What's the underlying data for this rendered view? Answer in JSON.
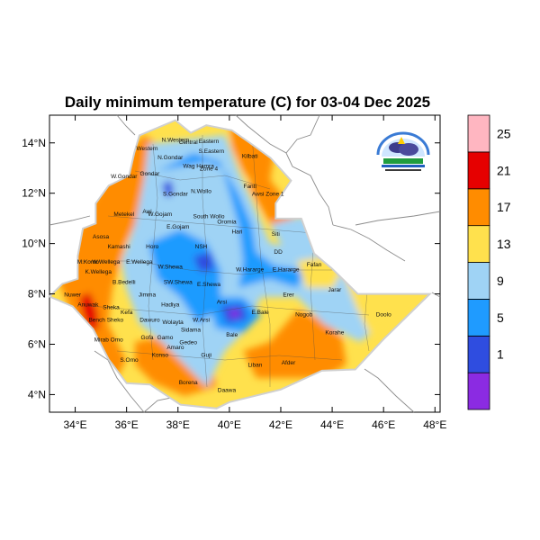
{
  "title": "Daily minimum temperature (C) for 03-04 Dec 2025",
  "lat_ticks": [
    "14°N",
    "12°N",
    "10°N",
    "8°N",
    "6°N",
    "4°N"
  ],
  "lon_ticks": [
    "34°E",
    "36°E",
    "38°E",
    "40°E",
    "42°E",
    "44°E",
    "46°E",
    "48°E"
  ],
  "colorbar": {
    "colors": [
      "#8b2be2",
      "#2f4de0",
      "#1f9bff",
      "#9fd3f5",
      "#ffe14d",
      "#ff8c00",
      "#e60000",
      "#ffb6c1"
    ],
    "labels": [
      "1",
      "5",
      "9",
      "13",
      "17",
      "21",
      "25"
    ]
  },
  "zones": [
    {
      "name": "N.Western",
      "lon": 37.9,
      "lat": 14.05
    },
    {
      "name": "Central",
      "lon": 38.4,
      "lat": 13.95
    },
    {
      "name": "Eastern",
      "lon": 39.2,
      "lat": 14.0
    },
    {
      "name": "Western",
      "lon": 36.8,
      "lat": 13.7
    },
    {
      "name": "S.Eastern",
      "lon": 39.3,
      "lat": 13.6
    },
    {
      "name": "Kilbati",
      "lon": 40.8,
      "lat": 13.4
    },
    {
      "name": "N.Gondar",
      "lon": 37.7,
      "lat": 13.35
    },
    {
      "name": "Wag Hamra",
      "lon": 38.8,
      "lat": 13.0
    },
    {
      "name": "Zone 4",
      "lon": 39.2,
      "lat": 12.9
    },
    {
      "name": "W.Gondar",
      "lon": 35.9,
      "lat": 12.6
    },
    {
      "name": "Gondar",
      "lon": 36.9,
      "lat": 12.7
    },
    {
      "name": "S.Gondar",
      "lon": 37.9,
      "lat": 11.9
    },
    {
      "name": "N.Wollo",
      "lon": 38.9,
      "lat": 12.0
    },
    {
      "name": "Fanti",
      "lon": 40.8,
      "lat": 12.2
    },
    {
      "name": "Awsi Zone 1",
      "lon": 41.5,
      "lat": 11.9
    },
    {
      "name": "Metekel",
      "lon": 35.9,
      "lat": 11.1
    },
    {
      "name": "Awi",
      "lon": 36.8,
      "lat": 11.2
    },
    {
      "name": "W.Gojam",
      "lon": 37.3,
      "lat": 11.1
    },
    {
      "name": "South Wollo",
      "lon": 39.2,
      "lat": 11.0
    },
    {
      "name": "Oromia",
      "lon": 39.9,
      "lat": 10.8
    },
    {
      "name": "E.Gojam",
      "lon": 38.0,
      "lat": 10.6
    },
    {
      "name": "Hari",
      "lon": 40.3,
      "lat": 10.4
    },
    {
      "name": "Siti",
      "lon": 41.8,
      "lat": 10.3
    },
    {
      "name": "Asosa",
      "lon": 35.0,
      "lat": 10.2
    },
    {
      "name": "Kamashi",
      "lon": 35.7,
      "lat": 9.8
    },
    {
      "name": "Horo",
      "lon": 37.0,
      "lat": 9.8
    },
    {
      "name": "NSH",
      "lon": 38.9,
      "lat": 9.8
    },
    {
      "name": "DD",
      "lon": 41.9,
      "lat": 9.6
    },
    {
      "name": "M.Komo",
      "lon": 34.5,
      "lat": 9.2
    },
    {
      "name": "W.Wellega",
      "lon": 35.2,
      "lat": 9.2
    },
    {
      "name": "E.Wellega",
      "lon": 36.5,
      "lat": 9.2
    },
    {
      "name": "W.Shewa",
      "lon": 37.7,
      "lat": 9.0
    },
    {
      "name": "Fafan",
      "lon": 43.3,
      "lat": 9.1
    },
    {
      "name": "W.Hararge",
      "lon": 40.8,
      "lat": 8.9
    },
    {
      "name": "E.Hararge",
      "lon": 42.2,
      "lat": 8.9
    },
    {
      "name": "K.Wellega",
      "lon": 34.9,
      "lat": 8.8
    },
    {
      "name": "B.Bedelli",
      "lon": 35.9,
      "lat": 8.4
    },
    {
      "name": "SW.Shewa",
      "lon": 38.0,
      "lat": 8.4
    },
    {
      "name": "E.Shewa",
      "lon": 39.2,
      "lat": 8.3
    },
    {
      "name": "Jarar",
      "lon": 44.1,
      "lat": 8.1
    },
    {
      "name": "Nuwer",
      "lon": 33.9,
      "lat": 7.9
    },
    {
      "name": "Jimma",
      "lon": 36.8,
      "lat": 7.9
    },
    {
      "name": "Erer",
      "lon": 42.3,
      "lat": 7.9
    },
    {
      "name": "Anuwak",
      "lon": 34.5,
      "lat": 7.5
    },
    {
      "name": "Sheka",
      "lon": 35.4,
      "lat": 7.4
    },
    {
      "name": "Hadiya",
      "lon": 37.7,
      "lat": 7.5
    },
    {
      "name": "Arsi",
      "lon": 39.7,
      "lat": 7.6
    },
    {
      "name": "Kefa",
      "lon": 36.0,
      "lat": 7.2
    },
    {
      "name": "E.Bale",
      "lon": 41.2,
      "lat": 7.2
    },
    {
      "name": "Nogob",
      "lon": 42.9,
      "lat": 7.1
    },
    {
      "name": "Doolo",
      "lon": 46.0,
      "lat": 7.1
    },
    {
      "name": "Bench Sheko",
      "lon": 35.2,
      "lat": 6.9
    },
    {
      "name": "Dawuro",
      "lon": 36.9,
      "lat": 6.9
    },
    {
      "name": "Wolayta",
      "lon": 37.8,
      "lat": 6.8
    },
    {
      "name": "W.Arsi",
      "lon": 38.9,
      "lat": 6.9
    },
    {
      "name": "Sidama",
      "lon": 38.5,
      "lat": 6.5
    },
    {
      "name": "Korahe",
      "lon": 44.1,
      "lat": 6.4
    },
    {
      "name": "Bale",
      "lon": 40.1,
      "lat": 6.3
    },
    {
      "name": "Mirab Omo",
      "lon": 35.3,
      "lat": 6.1
    },
    {
      "name": "Gofa",
      "lon": 36.8,
      "lat": 6.2
    },
    {
      "name": "Gamo",
      "lon": 37.5,
      "lat": 6.2
    },
    {
      "name": "Amaro",
      "lon": 37.9,
      "lat": 5.8
    },
    {
      "name": "Gedeo",
      "lon": 38.4,
      "lat": 6.0
    },
    {
      "name": "Guji",
      "lon": 39.1,
      "lat": 5.5
    },
    {
      "name": "S.Omo",
      "lon": 36.1,
      "lat": 5.3
    },
    {
      "name": "Konso",
      "lon": 37.3,
      "lat": 5.5
    },
    {
      "name": "Liban",
      "lon": 41.0,
      "lat": 5.1
    },
    {
      "name": "Afder",
      "lon": 42.3,
      "lat": 5.2
    },
    {
      "name": "Borena",
      "lon": 38.4,
      "lat": 4.4
    },
    {
      "name": "Daawa",
      "lon": 39.9,
      "lat": 4.1
    }
  ]
}
